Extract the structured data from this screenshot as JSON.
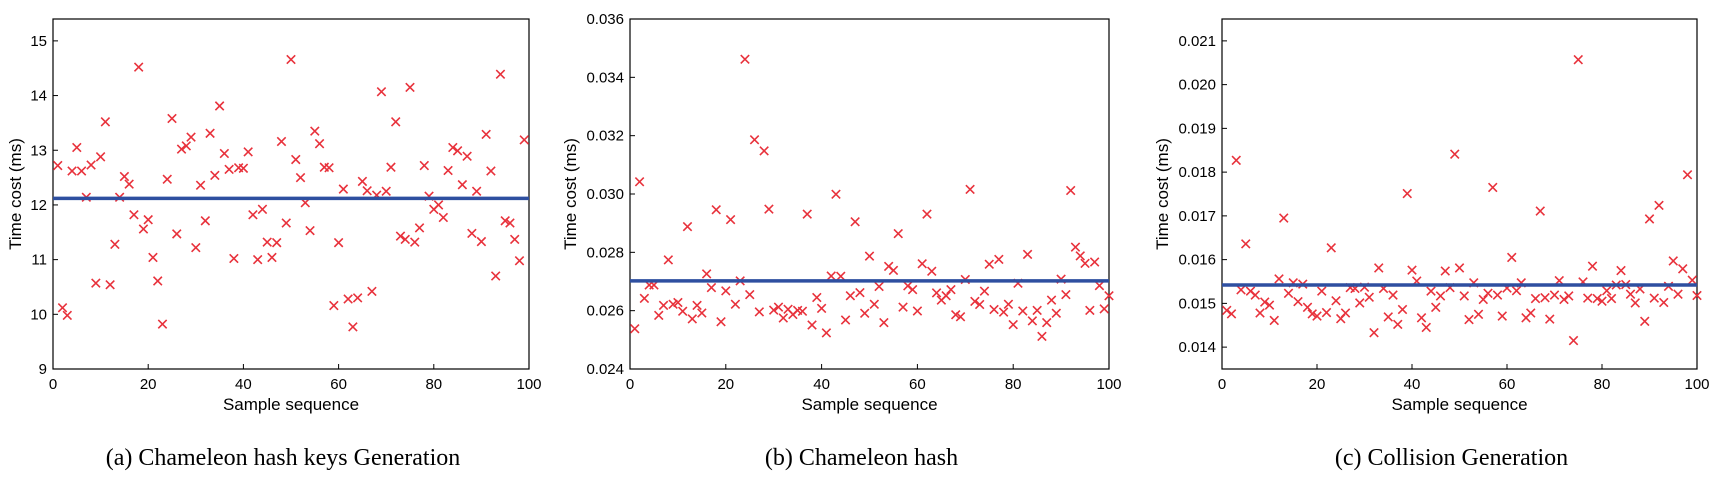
{
  "chart_data": [
    {
      "type": "scatter",
      "caption": "(a) Chameleon hash keys Generation",
      "xlabel": "Sample sequence",
      "ylabel": "Time cost (ms)",
      "xlim": [
        0,
        100
      ],
      "ylim": [
        9,
        15.4
      ],
      "xticks": [
        "0",
        "20",
        "40",
        "60",
        "80",
        "100"
      ],
      "yticks": [
        "9",
        "10",
        "11",
        "12",
        "13",
        "14",
        "15"
      ],
      "ytick_values": [
        9,
        10,
        11,
        12,
        13,
        14,
        15
      ],
      "mean_line": 12.12,
      "marker_color": "#e8323c",
      "line_color": "#2e4fa0",
      "y": [
        12.72,
        10.12,
        9.98,
        12.62,
        13.05,
        12.62,
        12.14,
        12.73,
        10.57,
        12.88,
        13.52,
        10.54,
        11.28,
        12.14,
        12.52,
        12.38,
        11.82,
        14.52,
        11.56,
        11.73,
        11.04,
        10.61,
        9.82,
        12.47,
        13.58,
        11.47,
        13.02,
        13.08,
        13.24,
        11.22,
        12.36,
        11.71,
        13.31,
        12.54,
        13.81,
        12.94,
        12.65,
        11.02,
        12.68,
        12.67,
        12.97,
        11.82,
        11.0,
        11.92,
        11.32,
        11.04,
        11.31,
        13.16,
        11.67,
        14.66,
        12.83,
        12.5,
        12.04,
        11.53,
        13.35,
        13.12,
        12.69,
        12.68,
        10.16,
        11.31,
        12.29,
        10.28,
        9.77,
        10.3,
        12.43,
        12.26,
        10.42,
        12.18,
        14.07,
        12.25,
        12.69,
        13.52,
        11.43,
        11.37,
        14.15,
        11.32,
        11.58,
        12.72,
        12.16,
        11.92,
        12.0,
        11.77,
        12.63,
        13.05,
        12.99,
        12.37,
        12.89,
        11.48,
        12.25,
        11.33,
        13.29,
        12.62,
        10.7,
        14.39,
        11.71,
        11.67,
        11.37,
        10.98,
        13.19
      ]
    },
    {
      "type": "scatter",
      "caption": "(b) Chameleon hash",
      "xlabel": "Sample sequence",
      "ylabel": "Time cost (ms)",
      "xlim": [
        0,
        100
      ],
      "ylim": [
        0.024,
        0.036
      ],
      "xticks": [
        "0",
        "20",
        "40",
        "60",
        "80",
        "100"
      ],
      "yticks": [
        "0.024",
        "0.026",
        "0.028",
        "0.030",
        "0.032",
        "0.034",
        "0.036"
      ],
      "ytick_values": [
        0.024,
        0.026,
        0.028,
        0.03,
        0.032,
        0.034,
        0.036
      ],
      "mean_line": 0.02702,
      "marker_color": "#e8323c",
      "line_color": "#2e4fa0",
      "y": [
        0.02538,
        0.03042,
        0.02642,
        0.02688,
        0.02688,
        0.02584,
        0.02618,
        0.02774,
        0.02622,
        0.02628,
        0.02598,
        0.02888,
        0.02572,
        0.02618,
        0.02592,
        0.02726,
        0.02679,
        0.02946,
        0.02562,
        0.02668,
        0.02912,
        0.02622,
        0.02702,
        0.03462,
        0.02655,
        0.03186,
        0.02596,
        0.03148,
        0.02948,
        0.02602,
        0.02612,
        0.02575,
        0.02605,
        0.02587,
        0.02601,
        0.02598,
        0.02931,
        0.02551,
        0.02645,
        0.02608,
        0.02524,
        0.02719,
        0.02999,
        0.02718,
        0.02568,
        0.02651,
        0.02905,
        0.02662,
        0.02591,
        0.02787,
        0.02622,
        0.02683,
        0.02559,
        0.02752,
        0.02738,
        0.02864,
        0.02612,
        0.02685,
        0.02672,
        0.02599,
        0.02761,
        0.02931,
        0.02735,
        0.02661,
        0.02636,
        0.02651,
        0.02672,
        0.02586,
        0.02579,
        0.02707,
        0.03016,
        0.02632,
        0.02621,
        0.02667,
        0.02759,
        0.02604,
        0.02776,
        0.02595,
        0.02622,
        0.02552,
        0.02694,
        0.02599,
        0.02793,
        0.02565,
        0.02601,
        0.02512,
        0.02559,
        0.02636,
        0.02591,
        0.02708,
        0.02655,
        0.03012,
        0.02818,
        0.02788,
        0.02762,
        0.02601,
        0.02767,
        0.02686,
        0.02606,
        0.02651
      ]
    },
    {
      "type": "scatter",
      "caption": "(c) Collision Generation",
      "xlabel": "Sample sequence",
      "ylabel": "Time cost (ms)",
      "xlim": [
        0,
        100
      ],
      "ylim": [
        0.0135,
        0.0215
      ],
      "xticks": [
        "0",
        "20",
        "40",
        "60",
        "80",
        "100"
      ],
      "yticks": [
        "0.014",
        "0.015",
        "0.016",
        "0.017",
        "0.018",
        "0.019",
        "0.020",
        "0.021"
      ],
      "ytick_values": [
        0.014,
        0.015,
        0.016,
        0.017,
        0.018,
        0.019,
        0.02,
        0.021
      ],
      "mean_line": 0.01542,
      "marker_color": "#e8323c",
      "line_color": "#2e4fa0",
      "y": [
        0.01484,
        0.01476,
        0.01827,
        0.01531,
        0.01636,
        0.01528,
        0.01519,
        0.01478,
        0.01503,
        0.01496,
        0.01461,
        0.01556,
        0.01695,
        0.01523,
        0.01547,
        0.01504,
        0.01544,
        0.01491,
        0.01476,
        0.01471,
        0.01528,
        0.01479,
        0.01627,
        0.01506,
        0.01465,
        0.01478,
        0.01536,
        0.01534,
        0.01501,
        0.01537,
        0.01514,
        0.01433,
        0.01581,
        0.01534,
        0.01469,
        0.01519,
        0.01452,
        0.01486,
        0.01751,
        0.01576,
        0.01551,
        0.01467,
        0.01445,
        0.01528,
        0.01491,
        0.01517,
        0.01574,
        0.01536,
        0.01841,
        0.01581,
        0.01517,
        0.01463,
        0.01547,
        0.01475,
        0.01509,
        0.01523,
        0.01765,
        0.01519,
        0.01471,
        0.01535,
        0.01605,
        0.01529,
        0.01547,
        0.01467,
        0.01478,
        0.01511,
        0.01711,
        0.01513,
        0.01464,
        0.01519,
        0.01552,
        0.01509,
        0.01517,
        0.01415,
        0.02057,
        0.01549,
        0.01512,
        0.01585,
        0.01511,
        0.01505,
        0.01529,
        0.01511,
        0.01542,
        0.01575,
        0.01543,
        0.01521,
        0.01501,
        0.01533,
        0.01459,
        0.01693,
        0.01512,
        0.01724,
        0.01502,
        0.01539,
        0.01597,
        0.01521,
        0.01579,
        0.01794,
        0.01553,
        0.01518
      ]
    }
  ]
}
